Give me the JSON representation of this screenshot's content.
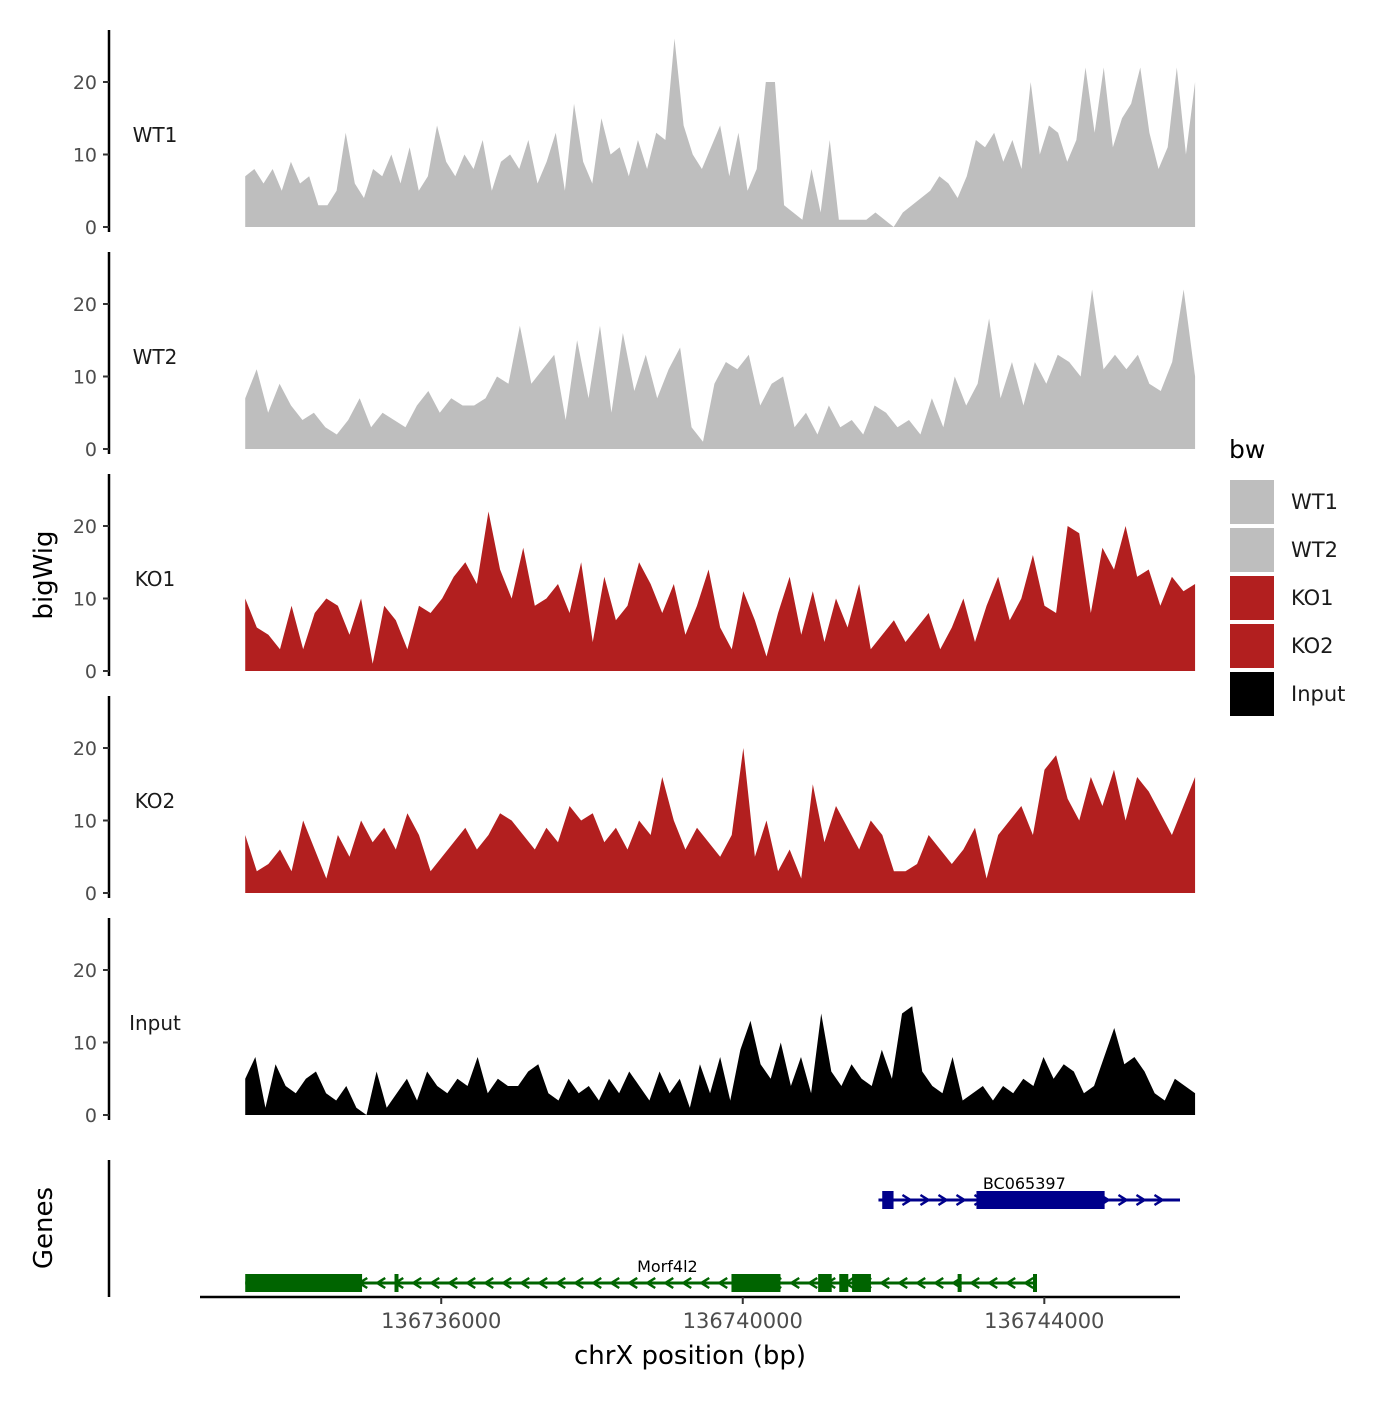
{
  "chart_data": {
    "type": "area",
    "title": "",
    "ylabel": "bigWig",
    "xlabel": "chrX position (bp)",
    "xlim": [
      136732800,
      136745800
    ],
    "ylim": [
      0,
      27
    ],
    "yticks": [
      0,
      10,
      20
    ],
    "xticks": [
      136736000,
      136740000,
      136744000
    ],
    "xtick_labels": [
      "136736000",
      "136740000",
      "136744000"
    ],
    "genes_label": "Genes",
    "legend": {
      "title": "bw",
      "entries": [
        {
          "label": "WT1",
          "color": "#bebebe"
        },
        {
          "label": "WT2",
          "color": "#bebebe"
        },
        {
          "label": "KO1",
          "color": "#b21f1f"
        },
        {
          "label": "KO2",
          "color": "#b21f1f"
        },
        {
          "label": "Input",
          "color": "#000000"
        }
      ]
    },
    "series": [
      {
        "name": "WT1",
        "color": "#bebebe",
        "x_start": 136733400,
        "x_end": 136746000,
        "values": [
          7,
          8,
          6,
          8,
          5,
          9,
          6,
          7,
          3,
          3,
          5,
          13,
          6,
          4,
          8,
          7,
          10,
          6,
          11,
          5,
          7,
          14,
          9,
          7,
          10,
          8,
          12,
          5,
          9,
          10,
          8,
          12,
          6,
          9,
          13,
          5,
          17,
          9,
          6,
          15,
          10,
          11,
          7,
          12,
          8,
          13,
          12,
          26,
          14,
          10,
          8,
          11,
          14,
          7,
          13,
          5,
          8,
          20,
          20,
          3,
          2,
          1,
          8,
          2,
          12,
          1,
          1,
          1,
          1,
          2,
          1,
          0,
          2,
          3,
          4,
          5,
          7,
          6,
          4,
          7,
          12,
          11,
          13,
          9,
          12,
          8,
          20,
          10,
          14,
          13,
          9,
          12,
          22,
          13,
          22,
          11,
          15,
          17,
          22,
          13,
          8,
          11,
          22,
          10,
          20
        ]
      },
      {
        "name": "WT2",
        "color": "#bebebe",
        "x_start": 136733400,
        "x_end": 136746000,
        "values": [
          7,
          11,
          5,
          9,
          6,
          4,
          5,
          3,
          2,
          4,
          7,
          3,
          5,
          4,
          3,
          6,
          8,
          5,
          7,
          6,
          6,
          7,
          10,
          9,
          17,
          9,
          11,
          13,
          4,
          15,
          7,
          17,
          5,
          16,
          8,
          13,
          7,
          11,
          14,
          3,
          1,
          9,
          12,
          11,
          13,
          6,
          9,
          10,
          3,
          5,
          2,
          6,
          3,
          4,
          2,
          6,
          5,
          3,
          4,
          2,
          7,
          3,
          10,
          6,
          9,
          18,
          7,
          12,
          6,
          12,
          9,
          13,
          12,
          10,
          22,
          11,
          13,
          11,
          13,
          9,
          8,
          12,
          22,
          10
        ]
      },
      {
        "name": "KO1",
        "color": "#b21f1f",
        "x_start": 136733400,
        "x_end": 136746000,
        "values": [
          10,
          6,
          5,
          3,
          9,
          3,
          8,
          10,
          9,
          5,
          10,
          1,
          9,
          7,
          3,
          9,
          8,
          10,
          13,
          15,
          12,
          22,
          14,
          10,
          17,
          9,
          10,
          12,
          8,
          15,
          4,
          13,
          7,
          9,
          15,
          12,
          8,
          12,
          5,
          9,
          14,
          6,
          3,
          11,
          7,
          2,
          8,
          13,
          5,
          11,
          4,
          10,
          6,
          12,
          3,
          5,
          7,
          4,
          6,
          8,
          3,
          6,
          10,
          4,
          9,
          13,
          7,
          10,
          16,
          9,
          8,
          20,
          19,
          8,
          17,
          14,
          20,
          13,
          14,
          9,
          13,
          11,
          12
        ]
      },
      {
        "name": "KO2",
        "color": "#b21f1f",
        "x_start": 136733400,
        "x_end": 136746000,
        "values": [
          8,
          3,
          4,
          6,
          3,
          10,
          6,
          2,
          8,
          5,
          10,
          7,
          9,
          6,
          11,
          8,
          3,
          5,
          7,
          9,
          6,
          8,
          11,
          10,
          8,
          6,
          9,
          7,
          12,
          10,
          11,
          7,
          9,
          6,
          10,
          8,
          16,
          10,
          6,
          9,
          7,
          5,
          8,
          20,
          5,
          10,
          3,
          6,
          2,
          15,
          7,
          12,
          9,
          6,
          10,
          8,
          3,
          3,
          4,
          8,
          6,
          4,
          6,
          9,
          2,
          8,
          10,
          12,
          8,
          17,
          19,
          13,
          10,
          16,
          12,
          17,
          10,
          16,
          14,
          11,
          8,
          12,
          16
        ]
      },
      {
        "name": "Input",
        "color": "#000000",
        "x_start": 136733400,
        "x_end": 136746000,
        "values": [
          5,
          8,
          1,
          7,
          4,
          3,
          5,
          6,
          3,
          2,
          4,
          1,
          0,
          6,
          1,
          3,
          5,
          2,
          6,
          4,
          3,
          5,
          4,
          8,
          3,
          5,
          4,
          4,
          6,
          7,
          3,
          2,
          5,
          3,
          4,
          2,
          5,
          3,
          6,
          4,
          2,
          6,
          3,
          5,
          1,
          7,
          3,
          8,
          2,
          9,
          13,
          7,
          5,
          10,
          4,
          8,
          3,
          14,
          6,
          4,
          7,
          5,
          4,
          9,
          5,
          14,
          15,
          6,
          4,
          3,
          8,
          2,
          3,
          4,
          2,
          4,
          3,
          5,
          4,
          8,
          5,
          7,
          6,
          3,
          4,
          8,
          12,
          7,
          8,
          6,
          3,
          2,
          5,
          4,
          3
        ]
      }
    ],
    "genes": [
      {
        "name": "BC065397",
        "strand": "+",
        "color": "#00008b",
        "start": 136741800,
        "end": 136745800,
        "exons": [
          [
            136741850,
            136742000
          ],
          [
            136743100,
            136744800
          ]
        ]
      },
      {
        "name": "Morf4l2",
        "strand": "-",
        "color": "#006400",
        "start": 136733400,
        "end": 136743900,
        "exons": [
          [
            136733400,
            136734950
          ],
          [
            136735380,
            136735420
          ],
          [
            136739850,
            136740500
          ],
          [
            136741000,
            136741180
          ],
          [
            136741280,
            136741400
          ],
          [
            136741450,
            136741700
          ],
          [
            136742850,
            136742900
          ],
          [
            136743850,
            136743900
          ]
        ]
      }
    ]
  }
}
